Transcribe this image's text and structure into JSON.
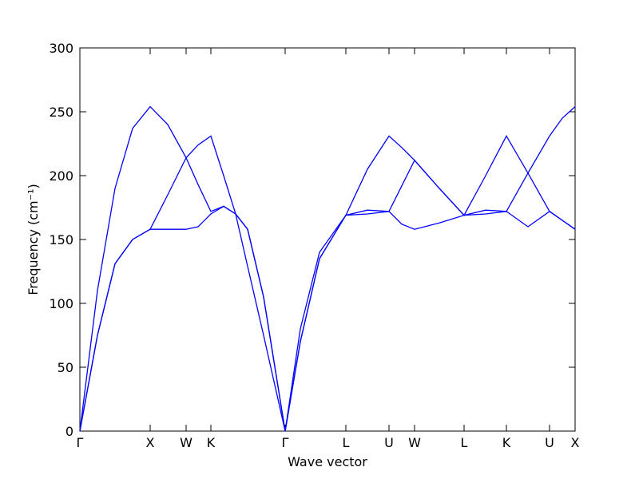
{
  "chart_data": {
    "type": "line",
    "xlabel": "Wave vector",
    "ylabel": "Frequency (cm⁻¹)",
    "x": [
      0,
      22,
      44,
      66,
      88,
      110,
      133,
      148,
      164,
      180,
      195,
      210,
      230,
      257,
      276,
      300,
      333,
      360,
      387,
      403,
      419,
      450,
      481,
      508,
      534,
      561,
      588,
      604,
      620
    ],
    "series": [
      {
        "color": "#0000ff",
        "values": [
          0,
          75,
          131,
          150,
          158,
          158,
          158,
          160,
          170,
          176,
          170,
          129,
          75,
          0,
          70,
          135,
          169,
          170,
          172,
          162,
          158,
          163,
          169,
          170,
          172,
          160,
          172,
          165,
          158
        ]
      },
      {
        "color": "#0000ff",
        "values": [
          0,
          75,
          131,
          150,
          158,
          185,
          214,
          193,
          172,
          176,
          170,
          158,
          105,
          0,
          70,
          135,
          169,
          173,
          172,
          192,
          212,
          190,
          169,
          173,
          172,
          202,
          172,
          165,
          158
        ]
      },
      {
        "color": "#0000ff",
        "values": [
          0,
          110,
          190,
          237,
          254,
          240,
          214,
          224,
          231,
          200,
          170,
          158,
          105,
          0,
          80,
          140,
          169,
          205,
          231,
          222,
          212,
          190,
          169,
          200,
          231,
          202,
          231,
          245,
          254
        ]
      }
    ],
    "xlim": [
      0,
      620
    ],
    "xticks": [
      {
        "value": 0,
        "label": "Γ"
      },
      {
        "value": 88,
        "label": "X"
      },
      {
        "value": 133,
        "label": "W"
      },
      {
        "value": 164,
        "label": "K"
      },
      {
        "value": 257,
        "label": "Γ"
      },
      {
        "value": 333,
        "label": "L"
      },
      {
        "value": 387,
        "label": "U"
      },
      {
        "value": 419,
        "label": "W"
      },
      {
        "value": 481,
        "label": "L"
      },
      {
        "value": 534,
        "label": "K"
      },
      {
        "value": 588,
        "label": "U"
      },
      {
        "value": 620,
        "label": "X"
      }
    ],
    "ylim": [
      0,
      300
    ],
    "yticks": [
      0,
      50,
      100,
      150,
      200,
      250,
      300
    ],
    "grid": false
  }
}
